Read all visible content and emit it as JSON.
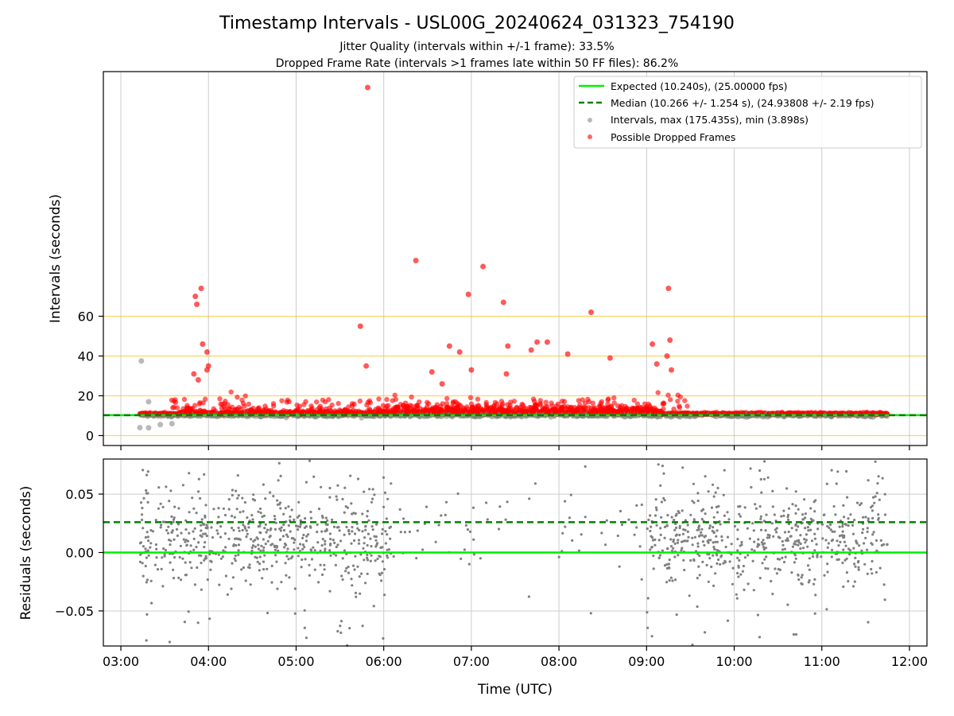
{
  "figure": {
    "title": "Timestamp Intervals - USL00G_20240624_031323_754190",
    "subtitle_1": "Jitter Quality (intervals within +/-1 frame): 33.5%",
    "subtitle_2": "Dropped Frame Rate (intervals >1 frames late within 50 FF files): 86.2%"
  },
  "colors": {
    "expected": "#00ee00",
    "median": "#008000",
    "intervals": "#808080",
    "dropped": "#ff0000",
    "hlines": "#ffc020",
    "grid": "#cccccc"
  },
  "chart_data": [
    {
      "type": "scatter",
      "panel": "top",
      "ylabel": "Intervals (seconds)",
      "xlim": [
        "02:48",
        "12:12"
      ],
      "ylim": [
        -5,
        183
      ],
      "yticks": [
        0,
        20,
        40,
        60
      ],
      "ytick_labels": [
        "0",
        "20",
        "40",
        "60"
      ],
      "hlines": [
        0,
        20,
        40,
        60
      ],
      "vgrid": [
        "03:00",
        "04:00",
        "05:00",
        "06:00",
        "07:00",
        "08:00",
        "09:00",
        "10:00",
        "11:00",
        "12:00"
      ],
      "legend_placement": "top-right",
      "legend": [
        {
          "label": "Expected (10.240s), (25.00000 fps)",
          "kind": "solid-line",
          "color": "#00ee00"
        },
        {
          "label": "Median (10.266 +/- 1.254 s), (24.93808 +/- 2.19 fps)",
          "kind": "dashed-line",
          "color": "#008000"
        },
        {
          "label": "Intervals, max (175.435s), min (3.898s)",
          "kind": "marker",
          "color": "#808080"
        },
        {
          "label": "Possible Dropped Frames",
          "kind": "marker",
          "color": "#ff0000"
        }
      ],
      "expected_line": 10.24,
      "median_line": 10.266,
      "x_range": [
        "03:13",
        "11:45"
      ],
      "baseline_interval": 10.24,
      "dropped_outliers": [
        {
          "t": "03:51",
          "y": 70
        },
        {
          "t": "03:52",
          "y": 66
        },
        {
          "t": "03:55",
          "y": 74
        },
        {
          "t": "03:56",
          "y": 46
        },
        {
          "t": "03:59",
          "y": 42
        },
        {
          "t": "03:59",
          "y": 33
        },
        {
          "t": "04:00",
          "y": 35
        },
        {
          "t": "03:50",
          "y": 31
        },
        {
          "t": "03:53",
          "y": 28
        },
        {
          "t": "05:44",
          "y": 55
        },
        {
          "t": "05:48",
          "y": 35
        },
        {
          "t": "05:49",
          "y": 175
        },
        {
          "t": "06:22",
          "y": 88
        },
        {
          "t": "06:58",
          "y": 71
        },
        {
          "t": "07:08",
          "y": 85
        },
        {
          "t": "07:22",
          "y": 67
        },
        {
          "t": "07:45",
          "y": 47
        },
        {
          "t": "07:52",
          "y": 47
        },
        {
          "t": "08:06",
          "y": 41
        },
        {
          "t": "08:22",
          "y": 62
        },
        {
          "t": "08:35",
          "y": 39
        },
        {
          "t": "09:04",
          "y": 46
        },
        {
          "t": "09:15",
          "y": 74
        },
        {
          "t": "09:16",
          "y": 48
        },
        {
          "t": "09:14",
          "y": 40
        },
        {
          "t": "09:17",
          "y": 33
        },
        {
          "t": "09:07",
          "y": 36
        },
        {
          "t": "06:45",
          "y": 45
        },
        {
          "t": "06:52",
          "y": 42
        },
        {
          "t": "07:25",
          "y": 45
        },
        {
          "t": "07:24",
          "y": 31
        },
        {
          "t": "06:33",
          "y": 32
        },
        {
          "t": "07:00",
          "y": 33
        },
        {
          "t": "06:40",
          "y": 26
        },
        {
          "t": "07:41",
          "y": 43
        }
      ],
      "gray_outliers": [
        {
          "t": "03:14",
          "y": 37.5
        },
        {
          "t": "03:13",
          "y": 4
        },
        {
          "t": "03:19",
          "y": 3.9
        },
        {
          "t": "03:19",
          "y": 17
        },
        {
          "t": "03:35",
          "y": 6
        },
        {
          "t": "03:27",
          "y": 5.5
        }
      ]
    },
    {
      "type": "scatter",
      "panel": "bottom",
      "xlabel": "Time (UTC)",
      "ylabel": "Residuals (seconds)",
      "xlim": [
        "02:48",
        "12:12"
      ],
      "ylim": [
        -0.08,
        0.08
      ],
      "yticks": [
        0.05,
        0.0,
        -0.05
      ],
      "ytick_labels": [
        "0.05",
        "0.00",
        "−0.05"
      ],
      "xticks": [
        "03:00",
        "04:00",
        "05:00",
        "06:00",
        "07:00",
        "08:00",
        "09:00",
        "10:00",
        "11:00",
        "12:00"
      ],
      "xtick_labels": [
        "03:00",
        "04:00",
        "05:00",
        "06:00",
        "07:00",
        "08:00",
        "09:00",
        "10:00",
        "11:00",
        "12:00"
      ],
      "expected_line": 0.0,
      "median_line": 0.026,
      "residual_segments": [
        {
          "from": "03:13",
          "to": "06:05",
          "density": "high"
        },
        {
          "from": "06:05",
          "to": "07:10",
          "density": "low"
        },
        {
          "from": "07:10",
          "to": "08:00",
          "density": "very-low"
        },
        {
          "from": "08:00",
          "to": "09:00",
          "density": "low"
        },
        {
          "from": "09:00",
          "to": "11:45",
          "density": "high"
        }
      ]
    }
  ]
}
